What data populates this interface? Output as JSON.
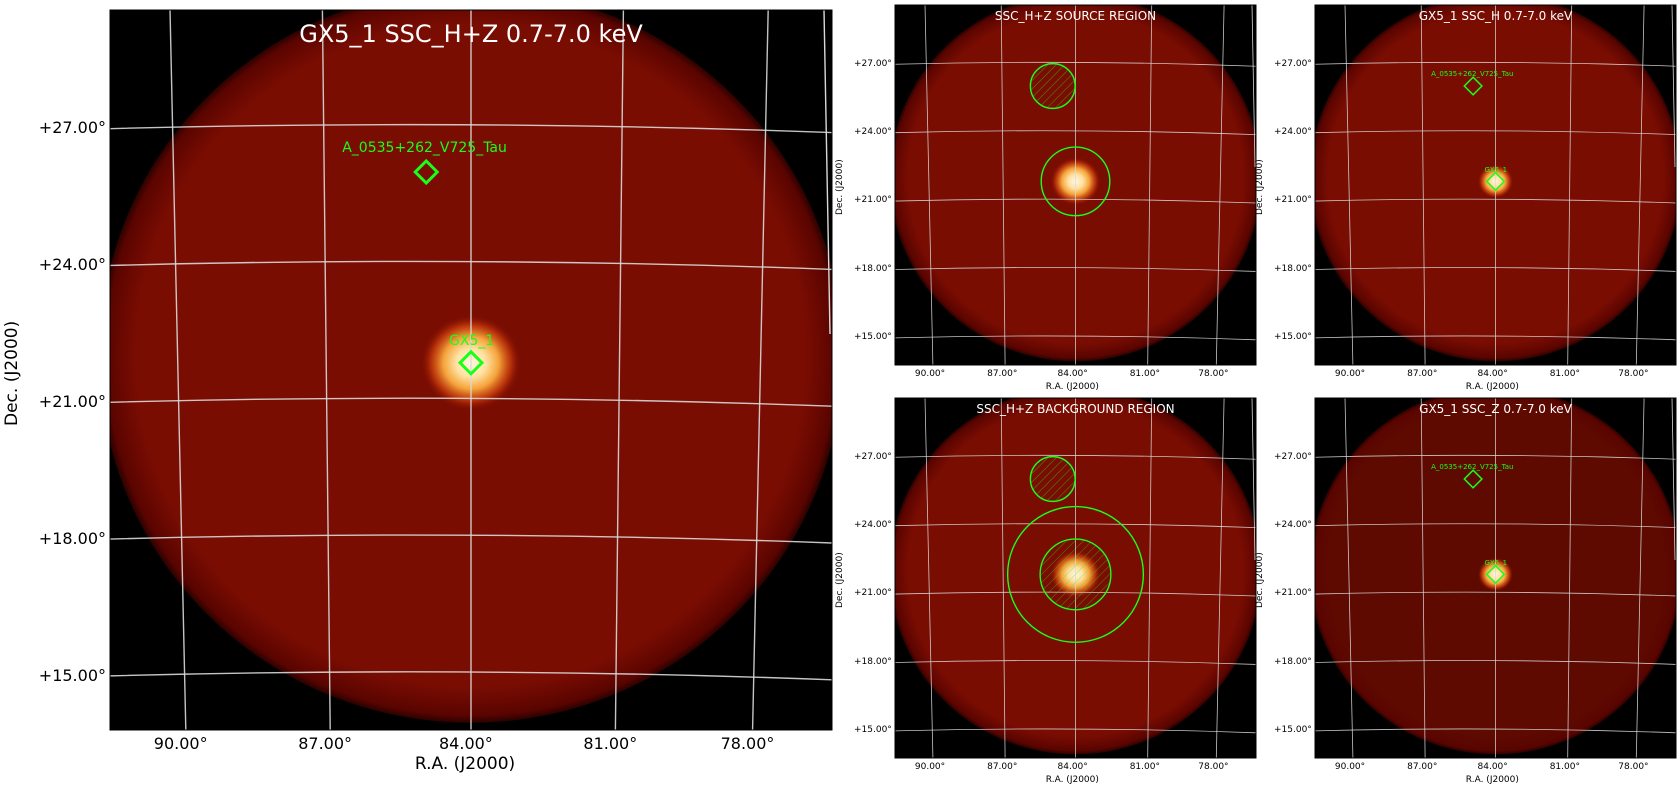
{
  "colors": {
    "background": "#000000",
    "disk_edge": "#5a0400",
    "disk_fill": "#7a0d02",
    "source_core": "#fff6e6",
    "region_green": "#19ff19",
    "grid": "#d9d9d9"
  },
  "axes": {
    "x_label": "R.A. (J2000)",
    "y_label": "Dec. (J2000)",
    "x_ticks": [
      "90.00°",
      "87.00°",
      "84.00°",
      "81.00°",
      "78.00°"
    ],
    "y_ticks": [
      "+27.00°",
      "+24.00°",
      "+21.00°",
      "+18.00°",
      "+15.00°"
    ]
  },
  "sources": {
    "primary": "GX5_1",
    "secondary": "A_0535+262_V725_Tau"
  },
  "panels": {
    "main": {
      "title": "GX5_1 SSC_H+Z 0.7-7.0 keV"
    },
    "source_region": {
      "title": "SSC_H+Z SOURCE REGION"
    },
    "ssc_h": {
      "title": "GX5_1 SSC_H 0.7-7.0 keV"
    },
    "background_region": {
      "title": "SSC_H+Z BACKGROUND REGION"
    },
    "ssc_z": {
      "title": "GX5_1 SSC_Z 0.7-7.0 keV"
    }
  }
}
